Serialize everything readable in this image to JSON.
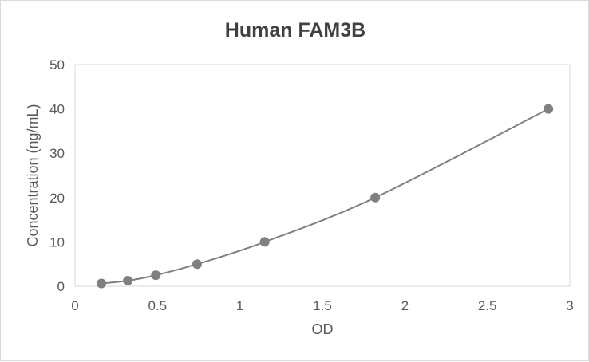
{
  "chart_data": {
    "type": "scatter",
    "title": "Human FAM3B",
    "xlabel": "OD",
    "ylabel": "Concentration (ng/mL)",
    "xlim": [
      0,
      3
    ],
    "ylim": [
      0,
      50
    ],
    "x_ticks": [
      "0",
      "0.5",
      "1",
      "1.5",
      "2",
      "2.5",
      "3"
    ],
    "y_ticks": [
      "0",
      "10",
      "20",
      "30",
      "40",
      "50"
    ],
    "grid": false,
    "smooth_line": true,
    "series": [
      {
        "x": [
          0.16,
          0.32,
          0.49,
          0.74,
          1.15,
          1.82,
          2.87
        ],
        "values": [
          0.625,
          1.25,
          2.5,
          5,
          10,
          20,
          40
        ]
      }
    ],
    "colors": {
      "marker": "#808080",
      "line": "#808080",
      "axis": "#d9d9d9",
      "text": "#595959",
      "title": "#404040"
    }
  }
}
